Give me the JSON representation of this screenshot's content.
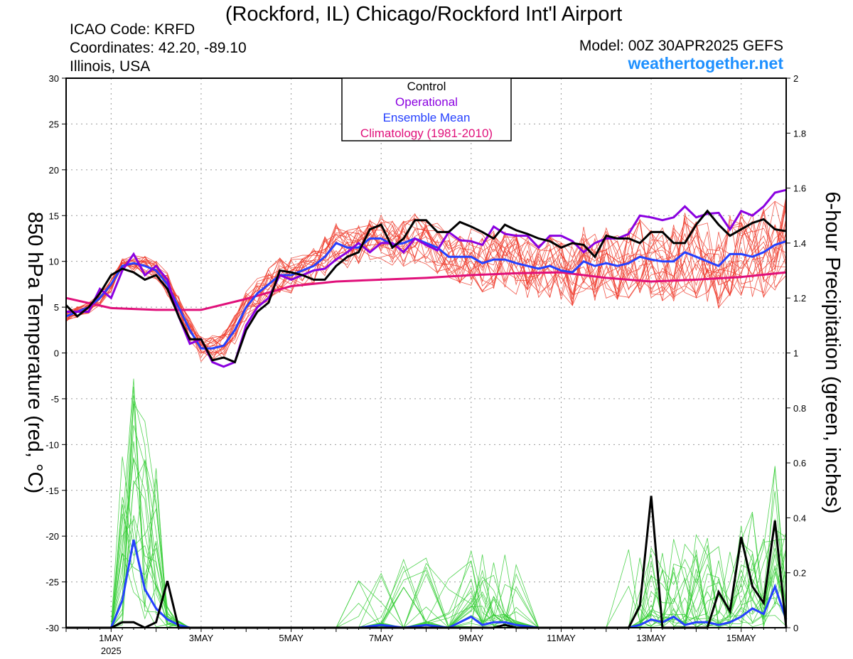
{
  "header": {
    "title": "(Rockford, IL) Chicago/Rockford Int'l Airport",
    "icao": "ICAO Code: KRFD",
    "coordinates": "Coordinates: 42.20, -89.10",
    "region": "Illinois, USA",
    "model": "Model: 00Z 30APR2025 GEFS",
    "website": "weathertogether.net"
  },
  "legend": {
    "entries": [
      {
        "label": "Control",
        "color": "#000000"
      },
      {
        "label": "Operational",
        "color": "#8a00e0"
      },
      {
        "label": "Ensemble Mean",
        "color": "#2540ff"
      },
      {
        "label": "Climatology (1981-2010)",
        "color": "#e0107a"
      }
    ]
  },
  "chart_data": {
    "type": "line",
    "ylabel": "850 hPa Temperature (red, °C)",
    "y2label": "6-hour Precipitation (green, inches)",
    "ylim": [
      -30,
      30
    ],
    "y2lim": [
      0,
      2
    ],
    "xlim_days": [
      0,
      16
    ],
    "x_tick_labels": [
      "1MAY",
      "3MAY",
      "5MAY",
      "7MAY",
      "9MAY",
      "11MAY",
      "13MAY",
      "15MAY"
    ],
    "x_tick_days": [
      1,
      3,
      5,
      7,
      9,
      11,
      13,
      15
    ],
    "x_year_label": "2025",
    "y_ticks": [
      "30",
      "25",
      "20",
      "15",
      "10",
      "5",
      "0",
      "-5",
      "-10",
      "-15",
      "-20",
      "-25",
      "-30"
    ],
    "y2_ticks": [
      "2",
      "1.8",
      "1.6",
      "1.4",
      "1.2",
      "1",
      "0.8",
      "0.6",
      "0.4",
      "0.2",
      "0"
    ],
    "temperature": {
      "control": {
        "days": [
          0,
          0.25,
          0.5,
          0.75,
          1,
          1.25,
          1.5,
          1.75,
          2,
          2.25,
          2.5,
          2.75,
          3,
          3.25,
          3.5,
          3.75,
          4,
          4.25,
          4.5,
          4.75,
          5,
          5.25,
          5.5,
          5.75,
          6,
          6.25,
          6.5,
          6.75,
          7,
          7.25,
          7.5,
          7.75,
          8,
          8.25,
          8.5,
          8.75,
          9,
          9.25,
          9.5,
          9.75,
          10,
          10.25,
          10.5,
          10.75,
          11,
          11.25,
          11.5,
          11.75,
          12,
          12.25,
          12.5,
          12.75,
          13,
          13.25,
          13.5,
          13.75,
          14,
          14.25,
          14.5,
          14.75,
          15,
          15.25,
          15.5,
          15.75,
          16
        ],
        "values": [
          5.2,
          4.0,
          5.0,
          6.5,
          8.5,
          9.2,
          8.8,
          8.0,
          8.5,
          7.0,
          4.0,
          1.5,
          1.5,
          -0.8,
          -0.5,
          -1.0,
          2.5,
          4.5,
          5.5,
          9.0,
          8.8,
          8.5,
          8.0,
          8.0,
          9.5,
          10.5,
          11.0,
          13.5,
          14.0,
          11.5,
          12.5,
          14.5,
          14.5,
          13.2,
          13.2,
          14.3,
          13.8,
          13.2,
          12.5,
          14.0,
          13.4,
          13.0,
          12.5,
          12.2,
          11.5,
          12.0,
          11.8,
          10.5,
          12.8,
          12.5,
          12.5,
          12.0,
          13.2,
          13.2,
          12.0,
          12.0,
          14.0,
          15.5,
          14.0,
          12.8,
          13.5,
          14.2,
          14.6,
          13.5,
          13.3
        ]
      },
      "operational": {
        "days": [
          0,
          0.25,
          0.5,
          0.75,
          1,
          1.25,
          1.5,
          1.75,
          2,
          2.25,
          2.5,
          2.75,
          3,
          3.25,
          3.5,
          3.75,
          4,
          4.25,
          4.5,
          4.75,
          5,
          5.25,
          5.5,
          5.75,
          6,
          6.25,
          6.5,
          6.75,
          7,
          7.25,
          7.5,
          7.75,
          8,
          8.25,
          8.5,
          8.75,
          9,
          9.25,
          9.5,
          9.75,
          10,
          10.25,
          10.5,
          10.75,
          11,
          11.25,
          11.5,
          11.75,
          12,
          12.25,
          12.5,
          12.75,
          13,
          13.25,
          13.5,
          13.75,
          14,
          14.25,
          14.5,
          14.75,
          15,
          15.25,
          15.5,
          15.75,
          16
        ],
        "values": [
          4.5,
          4.5,
          4.5,
          7.0,
          6.0,
          9.0,
          10.8,
          8.5,
          9.5,
          8.0,
          4.0,
          1.0,
          1.5,
          -1.0,
          -1.5,
          -1.0,
          3.0,
          5.0,
          6.0,
          8.5,
          8.0,
          8.5,
          9.0,
          9.2,
          10.2,
          11.0,
          12.0,
          11.0,
          12.0,
          12.0,
          11.0,
          12.5,
          11.8,
          11.2,
          13.2,
          12.3,
          12.2,
          11.8,
          13.8,
          13.0,
          12.8,
          12.8,
          11.5,
          12.8,
          12.8,
          12.2,
          11.0,
          12.0,
          12.5,
          12.5,
          13.0,
          15.0,
          14.8,
          14.5,
          14.8,
          16.0,
          14.8,
          15.2,
          15.3,
          13.5,
          15.5,
          15.0,
          16.0,
          17.5,
          17.8
        ]
      },
      "mean": {
        "days": [
          0,
          0.25,
          0.5,
          0.75,
          1,
          1.25,
          1.5,
          1.75,
          2,
          2.25,
          2.5,
          2.75,
          3,
          3.25,
          3.5,
          3.75,
          4,
          4.25,
          4.5,
          4.75,
          5,
          5.25,
          5.5,
          5.75,
          6,
          6.25,
          6.5,
          6.75,
          7,
          7.25,
          7.5,
          7.75,
          8,
          8.25,
          8.5,
          8.75,
          9,
          9.25,
          9.5,
          9.75,
          10,
          10.25,
          10.5,
          10.75,
          11,
          11.25,
          11.5,
          11.75,
          12,
          12.25,
          12.5,
          12.75,
          13,
          13.25,
          13.5,
          13.75,
          14,
          14.25,
          14.5,
          14.75,
          15,
          15.25,
          15.5,
          15.75,
          16
        ],
        "values": [
          4.0,
          4.5,
          5.0,
          6.0,
          7.5,
          9.5,
          9.8,
          9.5,
          9.0,
          7.5,
          5.0,
          2.5,
          0.5,
          0.5,
          0.8,
          2.5,
          5.0,
          6.5,
          7.5,
          8.5,
          8.5,
          9.0,
          9.5,
          10.5,
          12.0,
          11.5,
          11.5,
          12.5,
          12.5,
          11.8,
          12.0,
          12.5,
          12.0,
          11.5,
          10.5,
          10.5,
          10.5,
          9.8,
          10.2,
          10.2,
          9.8,
          9.5,
          9.2,
          9.5,
          9.0,
          8.8,
          10.0,
          9.5,
          9.8,
          9.5,
          9.8,
          10.5,
          10.2,
          10.0,
          10.0,
          11.0,
          10.5,
          10.0,
          9.5,
          10.8,
          10.8,
          10.5,
          11.0,
          11.8,
          12.2
        ]
      },
      "climatology": {
        "days": [
          0,
          1,
          2,
          3,
          4,
          5,
          6,
          7,
          8,
          9,
          10,
          11,
          12,
          13,
          14,
          15,
          16
        ],
        "values": [
          6.0,
          4.9,
          4.7,
          4.7,
          5.9,
          7.3,
          7.8,
          8.0,
          8.2,
          8.5,
          8.7,
          8.8,
          8.2,
          7.8,
          8.0,
          8.3,
          8.8
        ]
      },
      "members_count": 20
    },
    "precipitation": {
      "control": {
        "days": [
          0,
          1,
          1.25,
          1.5,
          1.75,
          2,
          2.25,
          2.5,
          2.75,
          3,
          3.5,
          4,
          4.5,
          5,
          6,
          7,
          8,
          9,
          9.25,
          9.5,
          9.75,
          10,
          11,
          12,
          12.25,
          12.5,
          12.75,
          13,
          13.25,
          13.5,
          13.75,
          14,
          14.25,
          14.5,
          14.75,
          15,
          15.25,
          15.5,
          15.75,
          16
        ],
        "values": [
          0,
          0,
          0.02,
          0.02,
          0,
          0.02,
          0.17,
          0,
          0,
          0,
          0,
          0,
          0,
          0,
          0,
          0,
          0,
          0,
          0,
          0,
          0.01,
          0,
          0,
          0,
          0,
          0,
          0.08,
          0.48,
          0,
          0,
          0,
          0,
          0,
          0.13,
          0.06,
          0.33,
          0.15,
          0.09,
          0.39,
          0
        ]
      },
      "mean": {
        "days": [
          0,
          1,
          1.25,
          1.5,
          1.75,
          2,
          2.25,
          2.5,
          2.75,
          3,
          4,
          5,
          6,
          6.5,
          7,
          7.5,
          8,
          8.5,
          9,
          9.25,
          9.5,
          9.75,
          10,
          10.5,
          11,
          11.5,
          12,
          12.5,
          12.75,
          13,
          13.25,
          13.5,
          13.75,
          14,
          14.25,
          14.5,
          14.75,
          15,
          15.25,
          15.5,
          15.75,
          16
        ],
        "values": [
          0,
          0,
          0.1,
          0.32,
          0.14,
          0.07,
          0.03,
          0.01,
          0,
          0,
          0,
          0,
          0,
          0,
          0.01,
          0,
          0.01,
          0,
          0.04,
          0.01,
          0.02,
          0.02,
          0.01,
          0,
          0,
          0,
          0,
          0,
          0.01,
          0.03,
          0.02,
          0.04,
          0.01,
          0.02,
          0.02,
          0.01,
          0.02,
          0.04,
          0.07,
          0.05,
          0.15,
          0.03
        ]
      }
    }
  }
}
